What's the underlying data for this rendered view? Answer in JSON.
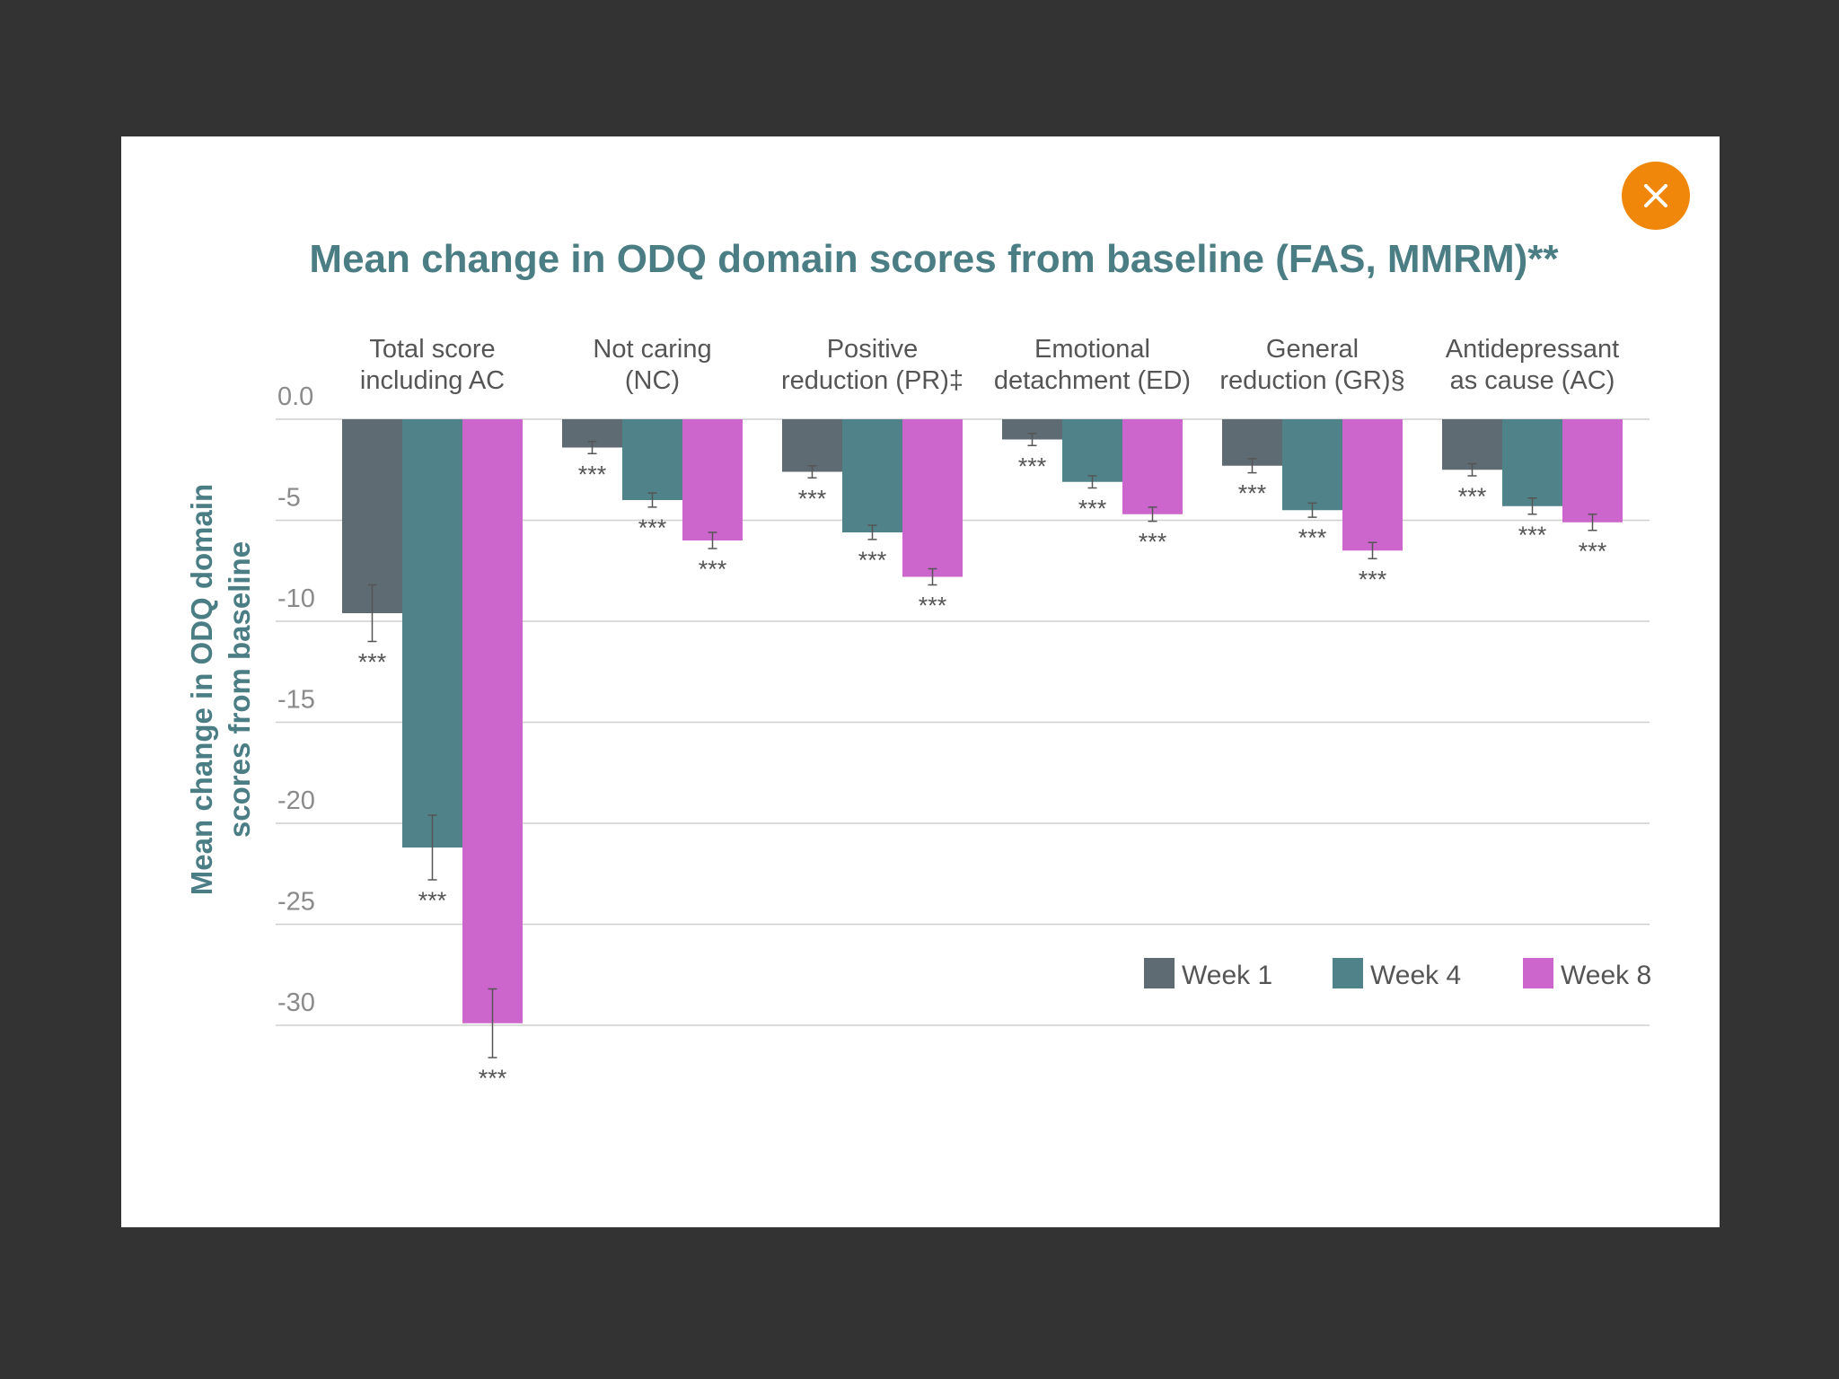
{
  "close_icon": "close-icon",
  "colors": {
    "backdrop": "#333333",
    "accent": "#f0870a",
    "title": "#4b7d84"
  },
  "chart_data": {
    "type": "bar",
    "title": "Mean change in ODQ domain scores from baseline (FAS, MMRM)**",
    "ylabel_lines": [
      "Mean change in ODQ domain",
      "scores from baseline"
    ],
    "xlabel": "",
    "ylim": [
      -30,
      0
    ],
    "yticks": [
      {
        "value": 0,
        "label": "0.0"
      },
      {
        "value": -5,
        "label": "-5"
      },
      {
        "value": -10,
        "label": "-10"
      },
      {
        "value": -15,
        "label": "-15"
      },
      {
        "value": -20,
        "label": "-20"
      },
      {
        "value": -25,
        "label": "-25"
      },
      {
        "value": -30,
        "label": "-30"
      }
    ],
    "categories": [
      {
        "line1": "Total score",
        "line2": "including AC"
      },
      {
        "line1": "Not caring",
        "line2": "(NC)"
      },
      {
        "line1": "Positive",
        "line2": "reduction (PR)‡"
      },
      {
        "line1": "Emotional",
        "line2": "detachment (ED)"
      },
      {
        "line1": "General",
        "line2": "reduction (GR)§"
      },
      {
        "line1": "Antidepressant",
        "line2": "as cause (AC)"
      }
    ],
    "series": [
      {
        "name": "Week 1",
        "color": "#5f6b73",
        "values": [
          -9.6,
          -1.4,
          -2.6,
          -1.0,
          -2.3,
          -2.5
        ],
        "err": [
          1.4,
          0.3,
          0.3,
          0.3,
          0.35,
          0.3
        ]
      },
      {
        "name": "Week 4",
        "color": "#4f8389",
        "values": [
          -21.2,
          -4.0,
          -5.6,
          -3.1,
          -4.5,
          -4.3
        ],
        "err": [
          1.6,
          0.35,
          0.35,
          0.3,
          0.35,
          0.4
        ]
      },
      {
        "name": "Week 8",
        "color": "#cc66cc",
        "values": [
          -29.9,
          -6.0,
          -7.8,
          -4.7,
          -6.5,
          -5.1
        ],
        "err": [
          1.7,
          0.4,
          0.4,
          0.35,
          0.4,
          0.4
        ]
      }
    ],
    "significance": "***",
    "legend_position": "bottom-right",
    "grid": true
  }
}
